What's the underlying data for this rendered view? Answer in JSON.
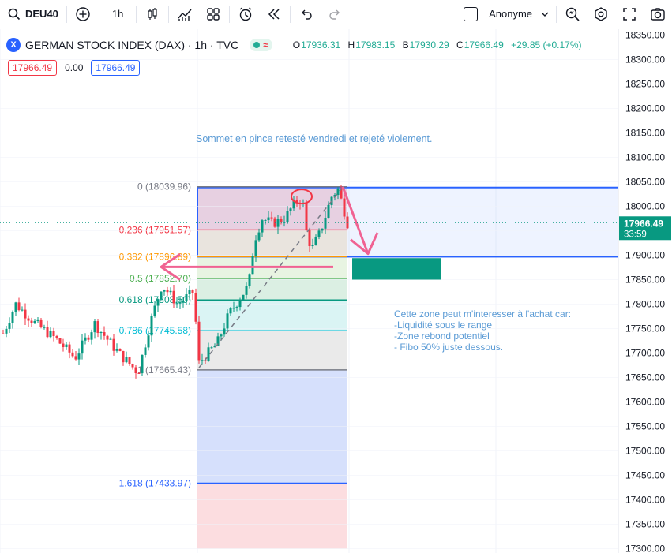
{
  "toolbar": {
    "symbol": "DEU40",
    "interval": "1h",
    "account": "Anonyme",
    "icons": [
      "search-icon",
      "add-icon",
      "candles-icon",
      "indicators-icon",
      "layouts-icon",
      "alert-icon",
      "replay-icon",
      "undo-icon",
      "redo-icon",
      "chevron-down-icon",
      "scan-icon",
      "settings-icon",
      "fullscreen-icon",
      "camera-icon"
    ]
  },
  "legend": {
    "logo": "X",
    "title": "GERMAN STOCK INDEX (DAX) · 1h · TVC",
    "pill_symbol": "≈",
    "o_label": "O",
    "o": "17936.31",
    "h_label": "H",
    "h": "17983.15",
    "l_label": "B",
    "l": "17930.29",
    "c_label": "C",
    "c": "17966.49",
    "change": "+29.85 (+0.17%)"
  },
  "prices": {
    "sell": "17966.49",
    "spread": "0.00",
    "buy": "17966.49"
  },
  "axis": {
    "ticks": [
      18350,
      18300,
      18250,
      18200,
      18150,
      18100,
      18050,
      18000,
      17950,
      17900,
      17850,
      17800,
      17750,
      17700,
      17650,
      17600,
      17550,
      17500,
      17450,
      17400,
      17350,
      17300
    ],
    "last_price": "17966.49",
    "countdown": "33:59"
  },
  "fib_levels": [
    {
      "label": "0 (18039.96)",
      "value": 18039.96,
      "color": "#787b86"
    },
    {
      "label": "0.236 (17951.57)",
      "value": 17951.57,
      "color": "#f23645"
    },
    {
      "label": "0.382 (17896.89)",
      "value": 17896.89,
      "color": "#ff9800"
    },
    {
      "label": "0.5 (17852.70)",
      "value": 17852.7,
      "color": "#4caf50"
    },
    {
      "label": "0.618 (17808.50)",
      "value": 17808.5,
      "color": "#089981"
    },
    {
      "label": "0.786 (17745.58)",
      "value": 17745.58,
      "color": "#00bcd4"
    },
    {
      "label": "1 (17665.43)",
      "value": 17665.43,
      "color": "#787b86"
    },
    {
      "label": "1.618 (17433.97)",
      "value": 17433.97,
      "color": "#2962ff"
    }
  ],
  "annotations": {
    "top_note": "Sommet en pince retesté vendredi et rejeté violement.",
    "zone_note": [
      "Cette zone peut m'interesser à l'achat car:",
      "-Liquidité sous le range",
      "-Zone rebond potentiel",
      "- Fibo 50% juste dessous."
    ]
  },
  "colors": {
    "up": "#089981",
    "down": "#f23645",
    "accent": "#2962ff",
    "arrow": "#f06292",
    "zone_green": "#089981"
  }
}
